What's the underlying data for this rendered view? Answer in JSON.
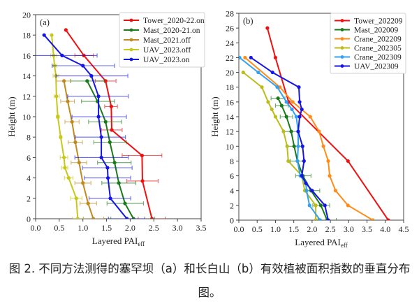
{
  "caption": {
    "line1": "图 2. 不同方法测得的塞罕坝（a）和长白山（b）有效植被面积指数的垂直分布",
    "line2": "图。"
  },
  "chart_data": [
    {
      "type": "line",
      "panel_label": "(a)",
      "title": "",
      "xlabel": "Layered PAI",
      "xlabel_sub": "eff",
      "ylabel": "Height (m)",
      "xlim": [
        0,
        3.5
      ],
      "ylim": [
        0,
        20
      ],
      "xticks": [
        "0.0",
        "0.5",
        "1.0",
        "1.5",
        "2.0",
        "2.5",
        "3.0",
        "3.5"
      ],
      "xtick_values": [
        0,
        0.5,
        1.0,
        1.5,
        2.0,
        2.5,
        3.0,
        3.5
      ],
      "yticks": [
        "0",
        "2",
        "4",
        "6",
        "8",
        "10",
        "12",
        "14",
        "16",
        "18",
        "20"
      ],
      "ytick_values": [
        0,
        2,
        4,
        6,
        8,
        10,
        12,
        14,
        16,
        18,
        20
      ],
      "grid": false,
      "legend_position": "top-right",
      "series": [
        {
          "name": "Tower_2020-22.on",
          "color": "#ee1111",
          "points": [
            {
              "h": 18.5,
              "v": 0.64
            },
            {
              "h": 16,
              "v": 1.02,
              "lo": 0.83,
              "hi": 1.22
            },
            {
              "h": 13.5,
              "v": 1.48,
              "lo": 1.26,
              "hi": 1.7
            },
            {
              "h": 11,
              "v": 1.6,
              "lo": 1.46,
              "hi": 1.73
            },
            {
              "h": 8.7,
              "v": 1.61,
              "lo": 1.39,
              "hi": 1.83
            },
            {
              "h": 6.2,
              "v": 2.25,
              "lo": 1.83,
              "hi": 2.67
            },
            {
              "h": 3.7,
              "v": 2.26,
              "lo": 1.93,
              "hi": 2.59
            },
            {
              "h": 0,
              "v": 2.46,
              "lo": 2.17,
              "hi": 2.74
            }
          ]
        },
        {
          "name": "Mast_2020-21.on",
          "color": "#1a7a1a",
          "points": [
            {
              "h": 13.5,
              "v": 1.09,
              "lo": 0.74,
              "hi": 1.46
            },
            {
              "h": 11.5,
              "v": 1.31,
              "lo": 0.97,
              "hi": 1.67
            },
            {
              "h": 9.5,
              "v": 1.48,
              "lo": 1.12,
              "hi": 1.82
            },
            {
              "h": 7.5,
              "v": 1.57,
              "lo": 1.23,
              "hi": 1.92
            },
            {
              "h": 5.5,
              "v": 1.67,
              "lo": 1.31,
              "hi": 2.02
            },
            {
              "h": 3.5,
              "v": 1.76,
              "lo": 1.4,
              "hi": 2.12
            },
            {
              "h": 1.5,
              "v": 1.89,
              "lo": 1.51,
              "hi": 2.28
            },
            {
              "h": 0,
              "v": 2.07,
              "lo": 1.59,
              "hi": 2.52
            }
          ]
        },
        {
          "name": "Mast_2021.off",
          "color": "#c08a1e",
          "points": [
            {
              "h": 13.5,
              "v": 0.6,
              "lo": 0.44,
              "hi": 0.74
            },
            {
              "h": 11.5,
              "v": 0.68,
              "lo": 0.53,
              "hi": 0.82
            },
            {
              "h": 9.5,
              "v": 0.77,
              "lo": 0.62,
              "hi": 0.92
            },
            {
              "h": 7.5,
              "v": 0.84,
              "lo": 0.69,
              "hi": 0.99
            },
            {
              "h": 5.5,
              "v": 0.92,
              "lo": 0.75,
              "hi": 1.08
            },
            {
              "h": 3.5,
              "v": 1.0,
              "lo": 0.83,
              "hi": 1.17
            },
            {
              "h": 1.5,
              "v": 1.11,
              "lo": 0.94,
              "hi": 1.29
            },
            {
              "h": 0,
              "v": 1.22,
              "lo": 1.01,
              "hi": 1.44
            }
          ]
        },
        {
          "name": "UAV_2023.off",
          "color": "#c8c81a",
          "points": [
            {
              "h": 18,
              "v": 0.34
            },
            {
              "h": 16,
              "v": 0.38,
              "lo": 0.32,
              "hi": 0.45
            },
            {
              "h": 15,
              "v": 0.4,
              "lo": 0.35,
              "hi": 0.45
            },
            {
              "h": 14,
              "v": 0.43,
              "lo": 0.37,
              "hi": 0.49
            },
            {
              "h": 12,
              "v": 0.44,
              "lo": 0.39,
              "hi": 0.5
            },
            {
              "h": 10,
              "v": 0.47,
              "lo": 0.44,
              "hi": 0.5
            },
            {
              "h": 8,
              "v": 0.53,
              "lo": 0.51,
              "hi": 0.55
            },
            {
              "h": 6,
              "v": 0.6,
              "lo": 0.52,
              "hi": 0.68
            },
            {
              "h": 5,
              "v": 0.62,
              "lo": 0.55,
              "hi": 0.68
            },
            {
              "h": 4,
              "v": 0.7,
              "lo": 0.61,
              "hi": 0.79
            },
            {
              "h": 2,
              "v": 0.86,
              "lo": 0.74,
              "hi": 0.98
            },
            {
              "h": 0,
              "v": 0.89,
              "lo": 0.78,
              "hi": 1.01
            }
          ]
        },
        {
          "name": "UAV_2023.on",
          "color": "#1515e6",
          "points": [
            {
              "h": 18,
              "v": 0.18
            },
            {
              "h": 16,
              "v": 0.56,
              "lo": -0.18,
              "hi": 1.3
            },
            {
              "h": 15,
              "v": 1.0,
              "lo": 0.35,
              "hi": 1.67
            },
            {
              "h": 14,
              "v": 1.18,
              "lo": 0.43,
              "hi": 1.95
            },
            {
              "h": 12,
              "v": 1.33,
              "lo": 0.68,
              "hi": 1.96
            },
            {
              "h": 10,
              "v": 1.33,
              "lo": 0.77,
              "hi": 1.92
            },
            {
              "h": 8,
              "v": 1.39,
              "lo": 0.84,
              "hi": 1.9
            },
            {
              "h": 6,
              "v": 1.39,
              "lo": 0.83,
              "hi": 1.96
            },
            {
              "h": 5,
              "v": 1.52,
              "lo": 0.99,
              "hi": 2.04
            },
            {
              "h": 4,
              "v": 1.53,
              "lo": 1.03,
              "hi": 2.01
            },
            {
              "h": 2,
              "v": 1.58,
              "lo": 1.13,
              "hi": 2.01
            },
            {
              "h": 0,
              "v": 1.93,
              "lo": 1.54,
              "hi": 2.31
            }
          ]
        }
      ]
    },
    {
      "type": "line",
      "panel_label": "(b)",
      "title": "",
      "xlabel": "Layered PAI",
      "xlabel_sub": "eff",
      "ylabel": "Height (m)",
      "xlim": [
        0,
        4.5
      ],
      "ylim": [
        0,
        28
      ],
      "xticks": [
        "0.0",
        "0.5",
        "1.0",
        "1.5",
        "2.0",
        "2.5",
        "3.0",
        "3.5",
        "4.0",
        "4.5"
      ],
      "xtick_values": [
        0,
        0.5,
        1.0,
        1.5,
        2.0,
        2.5,
        3.0,
        3.5,
        4.0,
        4.5
      ],
      "yticks": [
        "0",
        "2",
        "4",
        "6",
        "8",
        "10",
        "12",
        "14",
        "16",
        "18",
        "20",
        "22",
        "24",
        "26",
        "28"
      ],
      "ytick_values": [
        0,
        2,
        4,
        6,
        8,
        10,
        12,
        14,
        16,
        18,
        20,
        22,
        24,
        26,
        28
      ],
      "grid": false,
      "legend_position": "top-right",
      "series": [
        {
          "name": "Tower_202209",
          "color": "#ee1111",
          "points": [
            {
              "h": 26,
              "v": 0.78
            },
            {
              "h": 22,
              "v": 1.0
            },
            {
              "h": 16,
              "v": 1.36
            },
            {
              "h": 8,
              "v": 2.98
            },
            {
              "h": 0,
              "v": 4.08
            }
          ]
        },
        {
          "name": "Mast_202009",
          "color": "#1a7a1a",
          "points": [
            {
              "h": 16.5,
              "v": 1.07,
              "lo": 0.88,
              "hi": 1.26
            },
            {
              "h": 15.5,
              "v": 1.17,
              "lo": 1.0,
              "hi": 1.35
            },
            {
              "h": 14,
              "v": 1.3,
              "lo": 1.13,
              "hi": 1.47
            },
            {
              "h": 12,
              "v": 1.43,
              "lo": 1.22,
              "hi": 1.62
            },
            {
              "h": 10,
              "v": 1.51,
              "lo": 1.32,
              "hi": 1.72
            },
            {
              "h": 8,
              "v": 1.6,
              "lo": 1.41,
              "hi": 1.8
            },
            {
              "h": 6,
              "v": 1.75,
              "lo": 1.55,
              "hi": 1.97
            },
            {
              "h": 4,
              "v": 1.97,
              "lo": 1.83,
              "hi": 2.21
            },
            {
              "h": 2,
              "v": 2.24,
              "lo": 2.02,
              "hi": 2.48
            },
            {
              "h": 0,
              "v": 2.41,
              "lo": 2.16,
              "hi": 2.66
            }
          ]
        },
        {
          "name": "Crane_202209",
          "color": "#ff8c1a",
          "points": [
            {
              "h": 22,
              "v": 0.17
            },
            {
              "h": 18,
              "v": 1.12
            },
            {
              "h": 16,
              "v": 1.47
            },
            {
              "h": 14,
              "v": 1.95
            },
            {
              "h": 12,
              "v": 2.19
            },
            {
              "h": 10,
              "v": 2.31
            },
            {
              "h": 8,
              "v": 2.44
            },
            {
              "h": 6,
              "v": 2.48
            },
            {
              "h": 4,
              "v": 2.64
            },
            {
              "h": 2,
              "v": 2.98
            },
            {
              "h": 0,
              "v": 3.66
            }
          ]
        },
        {
          "name": "Crane_202305",
          "color": "#bcbc1c",
          "points": [
            {
              "h": 20,
              "v": 0.12
            },
            {
              "h": 18,
              "v": 0.63
            },
            {
              "h": 16,
              "v": 0.8
            },
            {
              "h": 15,
              "v": 0.9
            },
            {
              "h": 14,
              "v": 1.0
            },
            {
              "h": 12,
              "v": 1.22
            },
            {
              "h": 10,
              "v": 1.32
            },
            {
              "h": 8,
              "v": 1.35
            },
            {
              "h": 6,
              "v": 1.72
            },
            {
              "h": 4,
              "v": 1.8
            },
            {
              "h": 2,
              "v": 2.1
            },
            {
              "h": 0,
              "v": 2.1
            }
          ]
        },
        {
          "name": "Crane_202309",
          "color": "#33a0f0",
          "points": [
            {
              "h": 22,
              "v": 0.02
            },
            {
              "h": 20,
              "v": 0.53
            },
            {
              "h": 18,
              "v": 1.05
            },
            {
              "h": 16,
              "v": 1.3
            },
            {
              "h": 15,
              "v": 1.45
            },
            {
              "h": 14,
              "v": 1.57
            },
            {
              "h": 12,
              "v": 1.62
            },
            {
              "h": 10,
              "v": 1.62
            },
            {
              "h": 8,
              "v": 1.6
            },
            {
              "h": 6,
              "v": 1.68
            },
            {
              "h": 5,
              "v": 1.83
            },
            {
              "h": 4,
              "v": 1.85
            },
            {
              "h": 2,
              "v": 1.93
            },
            {
              "h": 0,
              "v": 2.22
            }
          ]
        },
        {
          "name": "UAV_202309",
          "color": "#1515e6",
          "points": [
            {
              "h": 22,
              "v": 0.33
            },
            {
              "h": 20,
              "v": 0.92
            },
            {
              "h": 18,
              "v": 1.64
            },
            {
              "h": 16,
              "v": 1.66
            },
            {
              "h": 15,
              "v": 1.72
            },
            {
              "h": 14,
              "v": 1.66
            },
            {
              "h": 12,
              "v": 1.62
            },
            {
              "h": 10,
              "v": 1.74
            },
            {
              "h": 8,
              "v": 1.78
            },
            {
              "h": 6,
              "v": 1.72
            },
            {
              "h": 5,
              "v": 1.83
            },
            {
              "h": 4,
              "v": 2.0
            },
            {
              "h": 2,
              "v": 2.35
            },
            {
              "h": 0,
              "v": 2.44
            }
          ]
        }
      ]
    }
  ]
}
